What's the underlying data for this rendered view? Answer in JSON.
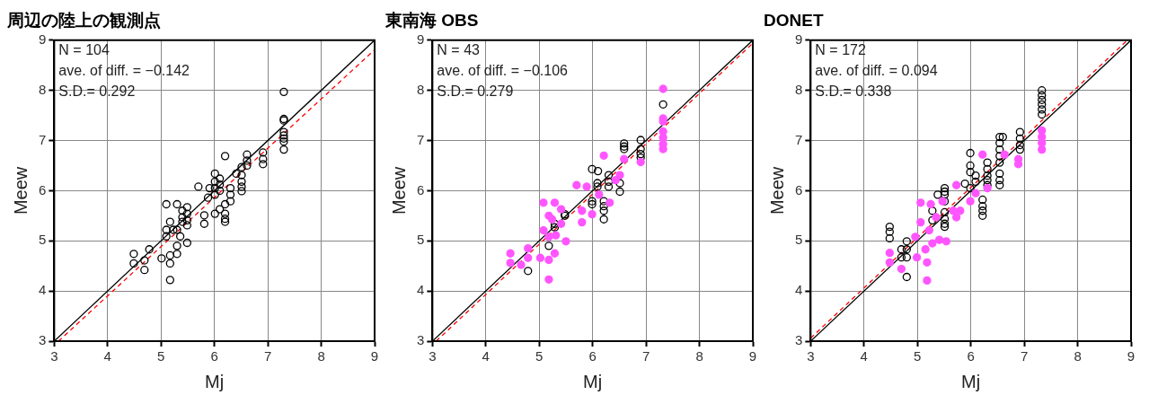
{
  "chart_data": [
    {
      "type": "scatter",
      "title": "周辺の陸上の観測点",
      "xlabel": "Mj",
      "ylabel": "Meew",
      "xlim": [
        3,
        9
      ],
      "ylim": [
        3,
        9
      ],
      "xticks": [
        3,
        4,
        5,
        6,
        7,
        8,
        9
      ],
      "yticks": [
        3,
        4,
        5,
        6,
        7,
        8,
        9
      ],
      "grid": true,
      "legend": false,
      "annotations": [
        "N = 104",
        "ave. of diff. = −0.142",
        "S.D.= 0.292"
      ],
      "series": [
        {
          "type": "scatter",
          "marker": "circle",
          "color": "#000000",
          "x": [
            7.3,
            7.3,
            7.3,
            7.3,
            7.3,
            7.3,
            7.3,
            7.3,
            6.91,
            6.91,
            6.91,
            6.61,
            6.61,
            6.61,
            6.51,
            6.51,
            6.51,
            6.51,
            6.51,
            6.41,
            6.2,
            6.01,
            6.01,
            6.01,
            6.01,
            6.1,
            6.1,
            6.1,
            5.91,
            5.88,
            6.3,
            6.3,
            6.3,
            6.2,
            6.2,
            6.2,
            6.2,
            6.01,
            6.1,
            5.81,
            5.81,
            5.7,
            5.49,
            5.49,
            5.49,
            5.49,
            5.4,
            5.4,
            5.4,
            5.3,
            5.3,
            5.1,
            5.17,
            5.1,
            5.1,
            5.23,
            5.36,
            5.49,
            5.3,
            5.3,
            5.17,
            5.17,
            5.17,
            5.01,
            4.78,
            4.69,
            4.69,
            4.49,
            4.49
          ],
          "values": [
            7.97,
            7.43,
            7.4,
            7.17,
            7.1,
            7.04,
            6.98,
            6.82,
            6.76,
            6.63,
            6.53,
            6.72,
            6.6,
            6.5,
            6.47,
            6.31,
            6.18,
            6.08,
            5.99,
            6.34,
            6.69,
            6.34,
            6.18,
            6.05,
            5.92,
            6.24,
            6.12,
            6.0,
            6.05,
            5.86,
            6.05,
            5.92,
            5.79,
            5.73,
            5.54,
            5.44,
            5.38,
            5.54,
            5.63,
            5.51,
            5.34,
            6.08,
            5.67,
            5.54,
            5.41,
            5.31,
            5.6,
            5.47,
            5.38,
            5.73,
            5.22,
            5.73,
            5.38,
            5.22,
            5.09,
            5.22,
            5.09,
            4.96,
            4.9,
            4.74,
            4.71,
            4.55,
            4.22,
            4.65,
            4.83,
            4.61,
            4.42,
            4.74,
            4.55
          ]
        },
        {
          "type": "line",
          "color": "#000000",
          "x": [
            3,
            9
          ],
          "values": [
            3,
            9
          ]
        },
        {
          "type": "line",
          "line_style": "dashed",
          "color": "#ff0000",
          "x": [
            3.08,
            9
          ],
          "values": [
            3,
            8.81
          ]
        }
      ]
    },
    {
      "type": "scatter",
      "title": "東南海 OBS",
      "xlabel": "Mj",
      "ylabel": "Meew",
      "xlim": [
        3,
        9
      ],
      "ylim": [
        3,
        9
      ],
      "xticks": [
        3,
        4,
        5,
        6,
        7,
        8,
        9
      ],
      "yticks": [
        3,
        4,
        5,
        6,
        7,
        8,
        9
      ],
      "grid": true,
      "legend": false,
      "annotations": [
        "N = 43",
        "ave. of diff. = −0.106",
        "S.D.= 0.279"
      ],
      "series": [
        {
          "type": "scatter",
          "color": "#ff55ff",
          "x": [
            7.32,
            7.32,
            7.32,
            7.32,
            7.32,
            7.32,
            7.32,
            6.9,
            6.59,
            6.21,
            6.51,
            6.43,
            5.7,
            5.89,
            5.8,
            5.8,
            5.99,
            6.32,
            6.12,
            5.08,
            5.29,
            5.41,
            5.18,
            5.08,
            5.41,
            5.5,
            5.31,
            5.18,
            5.29,
            5.18,
            5.18,
            5.02,
            4.79,
            4.79,
            4.46,
            4.46,
            4.66,
            5.24
          ],
          "values": [
            8.03,
            7.44,
            7.38,
            7.18,
            7.06,
            6.93,
            6.83,
            6.57,
            6.63,
            6.7,
            6.31,
            6.21,
            6.11,
            6.08,
            5.6,
            5.37,
            5.53,
            5.76,
            5.92,
            5.76,
            5.76,
            5.63,
            5.5,
            5.21,
            5.34,
            4.99,
            5.11,
            5.08,
            4.75,
            4.62,
            4.23,
            4.66,
            4.85,
            4.66,
            4.75,
            4.56,
            4.52,
            5.43
          ]
        },
        {
          "type": "scatter",
          "marker": "circle",
          "color": "#000000",
          "x": [
            7.32,
            6.9,
            6.9,
            6.9,
            6.9,
            6.59,
            6.59,
            6.59,
            5.99,
            6.1,
            6.3,
            6.09,
            6.09,
            6.3,
            6.3,
            6.51,
            6.51,
            5.99,
            5.99,
            6.21,
            6.21,
            6.21,
            6.21,
            5.48,
            5.48,
            5.29,
            5.29,
            5.18,
            4.79
          ],
          "values": [
            7.72,
            7.01,
            6.83,
            6.73,
            6.66,
            6.94,
            6.88,
            6.83,
            6.43,
            6.39,
            6.31,
            6.15,
            6.08,
            6.18,
            6.08,
            6.15,
            5.98,
            5.79,
            5.73,
            5.79,
            5.69,
            5.6,
            5.43,
            5.53,
            5.5,
            5.34,
            5.27,
            4.9,
            4.4
          ]
        },
        {
          "type": "line",
          "color": "#000000",
          "x": [
            3,
            9
          ],
          "values": [
            3,
            9
          ]
        },
        {
          "type": "line",
          "line_style": "dashed",
          "color": "#ff0000",
          "x": [
            3.07,
            9
          ],
          "values": [
            3,
            8.94
          ]
        }
      ]
    },
    {
      "type": "scatter",
      "title": "DONET",
      "xlabel": "Mj",
      "ylabel": "Meew",
      "xlim": [
        3,
        9
      ],
      "ylim": [
        3,
        9
      ],
      "xticks": [
        3,
        4,
        5,
        6,
        7,
        8,
        9
      ],
      "yticks": [
        3,
        4,
        5,
        6,
        7,
        8,
        9
      ],
      "grid": true,
      "legend": false,
      "annotations": [
        "N = 172",
        "ave. of diff. = 0.094",
        "S.D.= 0.338"
      ],
      "series": [
        {
          "type": "scatter",
          "color": "#ff55ff",
          "x": [
            7.33,
            7.33,
            7.33,
            7.33,
            6.89,
            6.89,
            6.63,
            6.22,
            6.09,
            6.31,
            5.99,
            5.73,
            5.8,
            5.67,
            5.73,
            5.06,
            5.25,
            5.06,
            5.22,
            5.41,
            5.54,
            5.28,
            5.15,
            4.99,
            5.18,
            5.18,
            4.7,
            4.48,
            4.48,
            4.96,
            5.35,
            5.47
          ],
          "values": [
            7.2,
            7.07,
            6.95,
            6.82,
            6.63,
            6.53,
            6.72,
            6.72,
            5.95,
            6.05,
            5.79,
            6.11,
            5.6,
            5.6,
            5.47,
            5.76,
            5.73,
            5.37,
            5.21,
            5.02,
            4.99,
            4.95,
            4.83,
            4.67,
            4.57,
            4.21,
            4.44,
            4.76,
            4.57,
            5.08,
            5.47,
            5.79
          ]
        },
        {
          "type": "scatter",
          "marker": "circle",
          "color": "#000000",
          "x": [
            7.33,
            7.33,
            7.33,
            7.33,
            7.33,
            7.33,
            6.92,
            6.92,
            6.92,
            6.92,
            6.6,
            6.54,
            6.54,
            6.54,
            6.54,
            6.54,
            6.54,
            6.54,
            6.54,
            6.31,
            6.31,
            6.31,
            6.31,
            6.31,
            5.99,
            5.99,
            5.99,
            6.09,
            6.09,
            5.99,
            5.89,
            6.22,
            6.22,
            6.22,
            6.22,
            5.51,
            5.51,
            5.51,
            5.51,
            5.51,
            5.51,
            5.51,
            5.51,
            5.38,
            5.28,
            5.28,
            4.48,
            4.48,
            4.48,
            4.8,
            4.8,
            4.8,
            4.7,
            4.7,
            4.8
          ],
          "values": [
            8.0,
            7.9,
            7.81,
            7.72,
            7.62,
            7.52,
            7.17,
            7.04,
            6.91,
            6.82,
            7.07,
            7.07,
            6.95,
            6.82,
            6.69,
            6.56,
            6.34,
            6.21,
            6.11,
            6.56,
            6.43,
            6.3,
            6.21,
            6.11,
            6.75,
            6.5,
            6.37,
            6.3,
            6.18,
            6.05,
            6.14,
            5.82,
            5.69,
            5.6,
            5.5,
            6.05,
            5.98,
            5.92,
            5.79,
            5.57,
            5.44,
            5.34,
            5.28,
            5.92,
            5.6,
            5.41,
            5.28,
            5.18,
            5.05,
            4.99,
            4.83,
            4.67,
            4.83,
            4.67,
            4.28
          ]
        },
        {
          "type": "line",
          "color": "#000000",
          "x": [
            3,
            9
          ],
          "values": [
            3,
            9
          ]
        },
        {
          "type": "line",
          "line_style": "dashed",
          "color": "#ff0000",
          "x": [
            3,
            8.93
          ],
          "values": [
            3.06,
            9
          ]
        }
      ]
    }
  ]
}
